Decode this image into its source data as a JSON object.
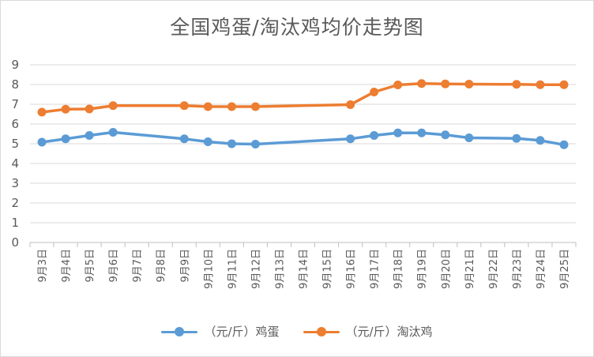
{
  "chart_data": {
    "type": "line",
    "title": "全国鸡蛋/淘汰鸡均价走势图",
    "categories": [
      "9月3日",
      "9月4日",
      "9月5日",
      "9月6日",
      "9月7日",
      "9月8日",
      "9月9日",
      "9月10日",
      "9月11日",
      "9月12日",
      "9月13日",
      "9月14日",
      "9月15日",
      "9月16日",
      "9月17日",
      "9月18日",
      "9月19日",
      "9月20日",
      "9月21日",
      "9月22日",
      "9月23日",
      "9月24日",
      "9月25日"
    ],
    "ylim": [
      0,
      9
    ],
    "yticks": [
      "0",
      "1",
      "2",
      "3",
      "4",
      "5",
      "6",
      "7",
      "8",
      "9"
    ],
    "grid": true,
    "legend_position": "bottom",
    "series": [
      {
        "name": "（元/斤）鸡蛋",
        "color": "#5b9bd5",
        "values": [
          5.08,
          5.25,
          5.42,
          5.58,
          null,
          null,
          5.25,
          5.1,
          5.0,
          4.98,
          null,
          null,
          null,
          5.25,
          5.42,
          5.55,
          5.55,
          5.45,
          5.3,
          null,
          5.27,
          5.17,
          4.95
        ]
      },
      {
        "name": "（元/斤）淘汰鸡",
        "color": "#ed7d31",
        "values": [
          6.6,
          6.75,
          6.76,
          6.93,
          null,
          null,
          6.93,
          6.88,
          6.88,
          6.88,
          null,
          null,
          null,
          6.98,
          7.62,
          7.98,
          8.05,
          8.03,
          8.02,
          null,
          8.01,
          7.99,
          7.99
        ]
      }
    ]
  }
}
